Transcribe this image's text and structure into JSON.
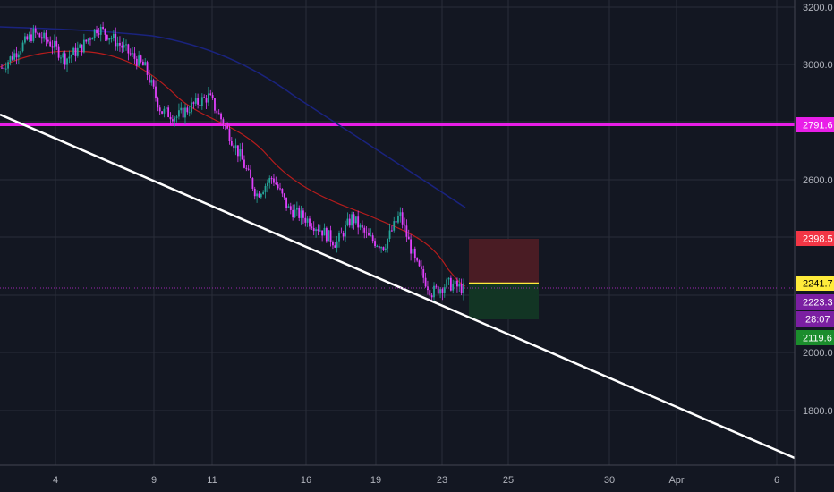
{
  "chart_data": {
    "type": "line",
    "title": "",
    "grid": true,
    "colors": {
      "background": "#131722",
      "grid": "#2a2e39",
      "up_candle": "#26a69a",
      "down_candle": "#e040fb",
      "ma_fast": "#b71c1c",
      "ma_slow": "#1a237e",
      "trendline": "#ffffff",
      "resistance": "#e91ee8",
      "stop_zone": "#4a1c24",
      "target_zone": "#123524",
      "entry_line": "#ffeb3b"
    },
    "x_axis": {
      "ticks": [
        "4",
        "9",
        "11",
        "16",
        "19",
        "23",
        "25",
        "30",
        "Apr",
        "6"
      ]
    },
    "y_axis": {
      "ticks": [
        "3200.0",
        "3000.0",
        "2800.0",
        "2600.0",
        "2400.0",
        "2200.0",
        "2000.0",
        "1800.0"
      ],
      "ylim": [
        1620,
        3205
      ]
    },
    "price_labels": [
      {
        "id": "resistance",
        "text": "2791.6",
        "bg": "#e91ee8",
        "fg": "#ffffff"
      },
      {
        "id": "stop",
        "text": "2398.5",
        "bg": "#f23645",
        "fg": "#ffffff"
      },
      {
        "id": "entry",
        "text": "2241.7",
        "bg": "#ffeb3b",
        "fg": "#000000"
      },
      {
        "id": "last",
        "text": "2223.3",
        "bg": "#7b1fa2",
        "fg": "#ffffff"
      },
      {
        "id": "countdown",
        "text": "28:07",
        "bg": "#7b1fa2",
        "fg": "#ffffff"
      },
      {
        "id": "target",
        "text": "2119.6",
        "bg": "#1b8d2c",
        "fg": "#ffffff"
      }
    ],
    "price_path": [
      {
        "x": 0,
        "y": 2990
      },
      {
        "x": 1,
        "y": 3050
      },
      {
        "x": 2,
        "y": 3110
      },
      {
        "x": 3,
        "y": 3080
      },
      {
        "x": 4,
        "y": 3020
      },
      {
        "x": 5,
        "y": 3060
      },
      {
        "x": 6,
        "y": 3130
      },
      {
        "x": 7,
        "y": 3090
      },
      {
        "x": 8,
        "y": 3040
      },
      {
        "x": 9,
        "y": 2990
      },
      {
        "x": 10,
        "y": 2840
      },
      {
        "x": 11,
        "y": 2820
      },
      {
        "x": 12,
        "y": 2860
      },
      {
        "x": 13,
        "y": 2890
      },
      {
        "x": 14,
        "y": 2790
      },
      {
        "x": 15,
        "y": 2680
      },
      {
        "x": 16,
        "y": 2550
      },
      {
        "x": 17,
        "y": 2610
      },
      {
        "x": 18,
        "y": 2500
      },
      {
        "x": 19,
        "y": 2470
      },
      {
        "x": 20,
        "y": 2430
      },
      {
        "x": 21,
        "y": 2380
      },
      {
        "x": 22,
        "y": 2470
      },
      {
        "x": 23,
        "y": 2400
      },
      {
        "x": 24,
        "y": 2370
      },
      {
        "x": 25,
        "y": 2480
      },
      {
        "x": 26,
        "y": 2310
      },
      {
        "x": 27,
        "y": 2210
      },
      {
        "x": 28,
        "y": 2240
      },
      {
        "x": 29,
        "y": 2223
      }
    ]
  }
}
